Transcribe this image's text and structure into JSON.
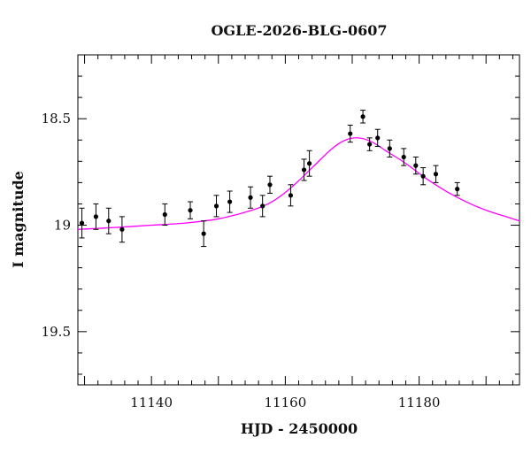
{
  "chart_data": {
    "type": "scatter",
    "title": "OGLE-2026-BLG-0607",
    "xlabel": "HJD - 2450000",
    "ylabel": "I magnitude",
    "xlim": [
      11129,
      11195
    ],
    "ylim": [
      19.75,
      18.2
    ],
    "y_inverted": true,
    "grid": false,
    "x_major_ticks": [
      11140,
      11160,
      11180
    ],
    "x_tick_labels": [
      "11140",
      "11160",
      "11180"
    ],
    "y_major_ticks": [
      18.5,
      19.0,
      19.5
    ],
    "y_tick_labels": [
      "18.5",
      "19",
      "19.5"
    ],
    "series": [
      {
        "kind": "points_with_errorbars",
        "color": "#000000",
        "x": [
          11129.6,
          11131.7,
          11133.6,
          11135.6,
          11142.0,
          11145.8,
          11147.8,
          11149.7,
          11151.7,
          11154.8,
          11156.6,
          11157.7,
          11160.8,
          11162.8,
          11163.6,
          11169.7,
          11171.6,
          11172.6,
          11173.8,
          11175.6,
          11177.7,
          11179.5,
          11180.6,
          11182.5,
          11185.7
        ],
        "y": [
          18.99,
          18.96,
          18.98,
          19.02,
          18.95,
          18.93,
          19.04,
          18.91,
          18.89,
          18.87,
          18.91,
          18.81,
          18.86,
          18.74,
          18.71,
          18.57,
          18.49,
          18.62,
          18.59,
          18.64,
          18.68,
          18.72,
          18.77,
          18.76,
          18.83
        ],
        "err": [
          0.07,
          0.06,
          0.06,
          0.06,
          0.05,
          0.04,
          0.06,
          0.05,
          0.05,
          0.05,
          0.05,
          0.04,
          0.05,
          0.05,
          0.06,
          0.04,
          0.03,
          0.03,
          0.04,
          0.04,
          0.04,
          0.04,
          0.04,
          0.04,
          0.03
        ]
      },
      {
        "kind": "model_curve",
        "color": "#ff00ff",
        "x": [
          11129,
          11135,
          11140,
          11145,
          11150,
          11155,
          11158,
          11161,
          11164,
          11167,
          11169,
          11171,
          11173,
          11175,
          11178,
          11181,
          11184,
          11187,
          11190,
          11193,
          11195
        ],
        "y": [
          19.02,
          19.01,
          19.0,
          18.99,
          18.97,
          18.93,
          18.89,
          18.82,
          18.73,
          18.64,
          18.6,
          18.59,
          18.61,
          18.65,
          18.71,
          18.78,
          18.84,
          18.89,
          18.93,
          18.96,
          18.98
        ]
      }
    ]
  }
}
